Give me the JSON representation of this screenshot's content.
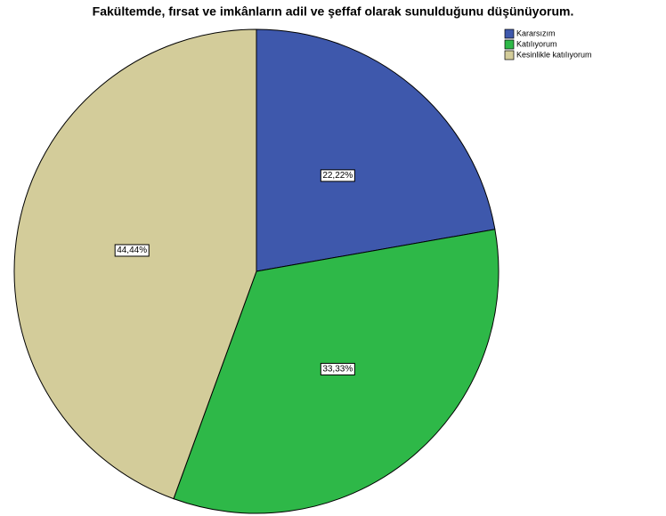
{
  "chart_data": {
    "type": "pie",
    "title": "Fakültemde, fırsat ve imkânların adil ve şeffaf olarak sunulduğunu düşünüyorum.",
    "categories": [
      "Kararsızım",
      "Katılıyorum",
      "Kesinlikle katılıyorum"
    ],
    "values": [
      22.22,
      33.33,
      44.44
    ],
    "value_labels": [
      "22,22%",
      "33,33%",
      "44,44%"
    ],
    "colors": [
      "#3e58ac",
      "#2eb848",
      "#d3cc9a"
    ],
    "legend": "top-right"
  }
}
